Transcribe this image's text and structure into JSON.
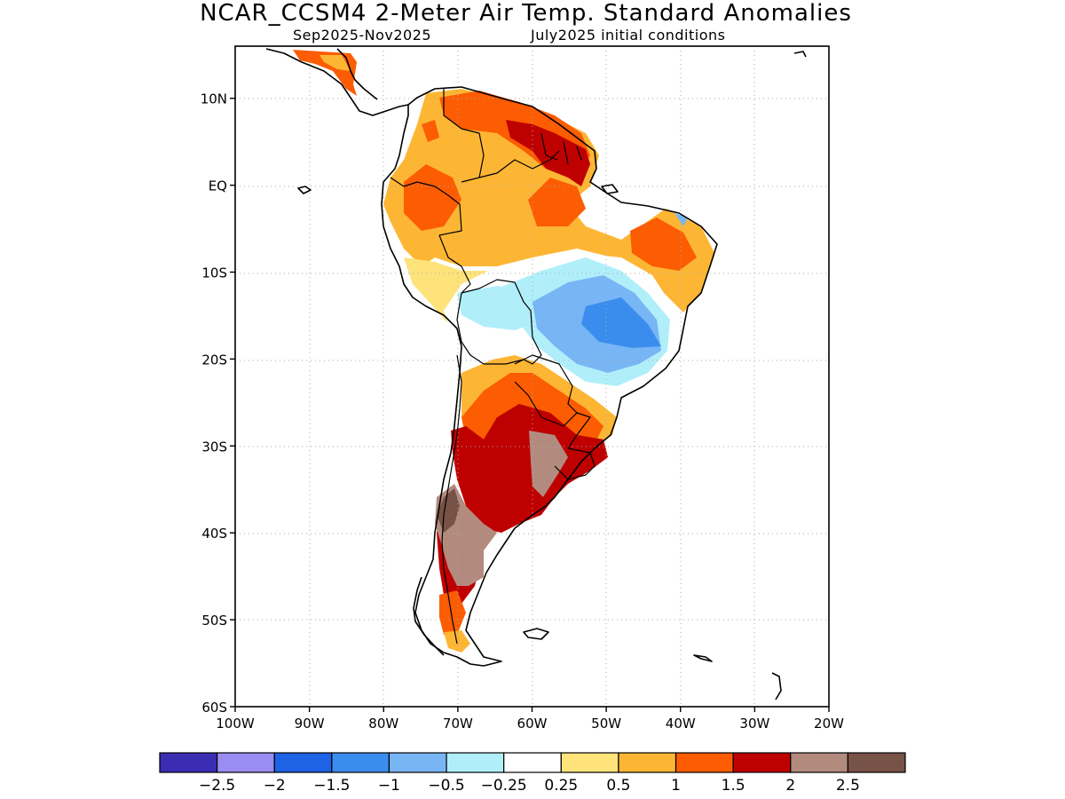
{
  "header": {
    "title": "NCAR_CCSM4 2-Meter Air Temp. Standard Anomalies",
    "subtitle_left": "Sep2025-Nov2025",
    "subtitle_right": "July2025 initial conditions"
  },
  "map": {
    "region": "South America",
    "lon_range": [
      -100,
      -20
    ],
    "lat_range": [
      -60,
      16
    ],
    "lat_ticks": [
      {
        "value": 10,
        "label": "10N"
      },
      {
        "value": 0,
        "label": "EQ"
      },
      {
        "value": -10,
        "label": "10S"
      },
      {
        "value": -20,
        "label": "20S"
      },
      {
        "value": -30,
        "label": "30S"
      },
      {
        "value": -40,
        "label": "40S"
      },
      {
        "value": -50,
        "label": "50S"
      },
      {
        "value": -60,
        "label": "60S"
      }
    ],
    "lon_ticks": [
      {
        "value": -100,
        "label": "100W"
      },
      {
        "value": -90,
        "label": "90W"
      },
      {
        "value": -80,
        "label": "80W"
      },
      {
        "value": -70,
        "label": "70W"
      },
      {
        "value": -60,
        "label": "60W"
      },
      {
        "value": -50,
        "label": "50W"
      },
      {
        "value": -40,
        "label": "40W"
      },
      {
        "value": -30,
        "label": "30W"
      },
      {
        "value": -20,
        "label": "20W"
      }
    ],
    "grid": "dotted",
    "anomaly_regions": [
      {
        "area": "Colombia / Venezuela / Ecuador / Peru north",
        "category": "0.5 to 1"
      },
      {
        "area": "Guiana Highlands / Guianas",
        "category": "1.5 to 2"
      },
      {
        "area": "Central Brazil",
        "category": "-1.5 to -1"
      },
      {
        "area": "Northeast Brazil",
        "category": "1 to 1.5"
      },
      {
        "area": "Paraguay / north Argentina / Uruguay",
        "category": "1.5 to 2"
      },
      {
        "area": "Patagonia / Andes",
        "category": "2 to 2.5"
      }
    ]
  },
  "colorbar": {
    "colors": [
      "#3a2cb3",
      "#9b8cf2",
      "#1e62e6",
      "#3b8ded",
      "#78b5f5",
      "#b0effa",
      "#ffffff",
      "#fde37a",
      "#fdb634",
      "#fc5c02",
      "#bf0000",
      "#b38a7e",
      "#775246"
    ],
    "labels": [
      "-2.5",
      "-2",
      "-1.5",
      "-1",
      "-0.5",
      "-0.25",
      "0.25",
      "0.5",
      "1",
      "1.5",
      "2",
      "2.5"
    ]
  }
}
